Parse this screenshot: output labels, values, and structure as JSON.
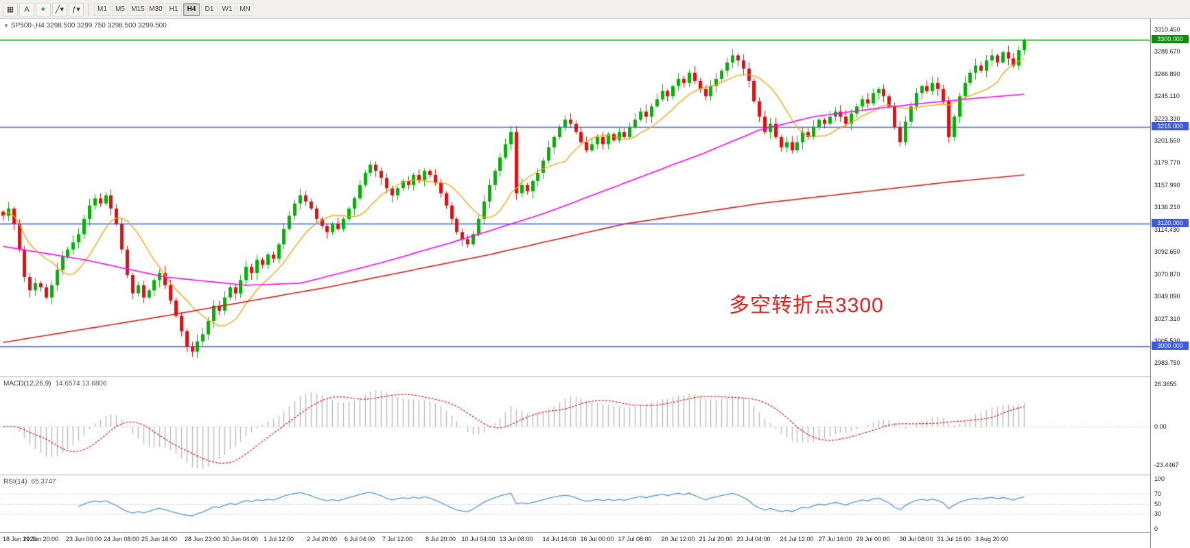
{
  "toolbar": {
    "buttons": [
      {
        "name": "chart-grid",
        "glyph": "▦"
      },
      {
        "name": "annotate-text",
        "glyph": "A"
      },
      {
        "name": "crosshair",
        "glyph": "+"
      },
      {
        "name": "line-studies",
        "glyph": "╱▾"
      },
      {
        "name": "indicators",
        "glyph": "ƒ▾"
      }
    ],
    "timeframes": [
      "M1",
      "M5",
      "M15",
      "M30",
      "H1",
      "H4",
      "D1",
      "W1",
      "MN"
    ],
    "active_timeframe": "H4"
  },
  "chart": {
    "symbol_header": "SP500-,H4  3298.500 3299.750 3298.500 3299.500",
    "annotation": {
      "text": "多空转折点3300",
      "color": "#e82020"
    }
  },
  "chart_data": {
    "type": "candlestick",
    "symbol": "SP500-",
    "timeframe": "H4",
    "quote": {
      "open": "3298.500",
      "high": "3299.750",
      "low": "3298.500",
      "close": "3299.500"
    },
    "colors": {
      "up": "#00b300",
      "down": "#dd1111",
      "ma_fast": "#ff9f00",
      "ma_mid": "#ff00ff",
      "ma_slow": "#e01818"
    },
    "y_axis": {
      "price_min": 2976,
      "price_max": 3315,
      "labels": [
        "3310.450",
        "3288.670",
        "3266.890",
        "3245.110",
        "3223.330",
        "3201.550",
        "3179.770",
        "3157.990",
        "3136.210",
        "3114.430",
        "3092.650",
        "3070.870",
        "3049.090",
        "3027.310",
        "3005.530",
        "2983.750"
      ]
    },
    "hlines": [
      {
        "price": 3300,
        "color": "#0a8f0a",
        "tag": "3300.000"
      },
      {
        "price": 3215,
        "color": "#3c5ae0",
        "tag": "3215.000"
      },
      {
        "price": 3120,
        "color": "#3c5ae0",
        "tag": "3120.000"
      },
      {
        "price": 3000,
        "color": "#3c5ae0",
        "tag": "3000.000"
      }
    ],
    "closes": [
      3128,
      3135,
      3120,
      3095,
      3068,
      3055,
      3062,
      3058,
      3048,
      3060,
      3075,
      3088,
      3095,
      3102,
      3110,
      3125,
      3138,
      3145,
      3140,
      3148,
      3135,
      3120,
      3095,
      3070,
      3052,
      3060,
      3048,
      3055,
      3065,
      3072,
      3060,
      3045,
      3030,
      3015,
      3000,
      2995,
      3005,
      3012,
      3025,
      3040,
      3035,
      3048,
      3058,
      3052,
      3065,
      3078,
      3072,
      3085,
      3080,
      3090,
      3086,
      3100,
      3115,
      3128,
      3140,
      3148,
      3142,
      3135,
      3125,
      3118,
      3112,
      3120,
      3115,
      3125,
      3135,
      3145,
      3158,
      3170,
      3178,
      3172,
      3165,
      3155,
      3148,
      3155,
      3162,
      3158,
      3168,
      3163,
      3172,
      3168,
      3160,
      3150,
      3138,
      3125,
      3112,
      3105,
      3100,
      3110,
      3125,
      3142,
      3158,
      3172,
      3185,
      3198,
      3210,
      3150,
      3158,
      3152,
      3162,
      3170,
      3182,
      3195,
      3205,
      3215,
      3222,
      3218,
      3210,
      3200,
      3192,
      3198,
      3205,
      3198,
      3208,
      3202,
      3210,
      3205,
      3215,
      3222,
      3230,
      3225,
      3235,
      3242,
      3250,
      3245,
      3255,
      3262,
      3258,
      3268,
      3260,
      3252,
      3245,
      3255,
      3262,
      3270,
      3278,
      3285,
      3280,
      3272,
      3260,
      3240,
      3225,
      3210,
      3218,
      3205,
      3195,
      3200,
      3192,
      3200,
      3210,
      3205,
      3215,
      3222,
      3218,
      3225,
      3230,
      3225,
      3218,
      3228,
      3235,
      3242,
      3238,
      3248,
      3252,
      3245,
      3235,
      3215,
      3200,
      3220,
      3235,
      3248,
      3255,
      3250,
      3258,
      3252,
      3240,
      3205,
      3225,
      3245,
      3258,
      3268,
      3275,
      3270,
      3280,
      3285,
      3278,
      3288,
      3282,
      3275,
      3290,
      3299.5
    ],
    "ma_fast_period": 10,
    "ma_mid_anchors": [
      [
        0,
        3098
      ],
      [
        15,
        3085
      ],
      [
        30,
        3068
      ],
      [
        45,
        3060
      ],
      [
        55,
        3062
      ],
      [
        70,
        3082
      ],
      [
        85,
        3105
      ],
      [
        100,
        3130
      ],
      [
        115,
        3160
      ],
      [
        130,
        3190
      ],
      [
        140,
        3212
      ],
      [
        150,
        3225
      ],
      [
        160,
        3232
      ],
      [
        170,
        3238
      ],
      [
        180,
        3243
      ],
      [
        189,
        3247
      ]
    ],
    "ma_slow_anchors": [
      [
        0,
        3004
      ],
      [
        30,
        3030
      ],
      [
        60,
        3058
      ],
      [
        90,
        3090
      ],
      [
        115,
        3120
      ],
      [
        140,
        3140
      ],
      [
        160,
        3152
      ],
      [
        175,
        3161
      ],
      [
        189,
        3168
      ]
    ],
    "macd": {
      "label": "MACD(12,26,9)",
      "display_values": "14.6574 13.6806",
      "fast": 12,
      "slow": 26,
      "signal": 9,
      "axis_labels": [
        "26.3655",
        "0.00",
        "-23.4467"
      ],
      "axis_values": [
        26.3655,
        0,
        -23.4467
      ],
      "range": [
        -27,
        28
      ],
      "histogram_color": "#b9b9b9",
      "signal_color": "#e01414"
    },
    "rsi": {
      "label": "RSI(14)",
      "display_value": "65.3747",
      "period": 14,
      "axis_labels": [
        "100",
        "70",
        "50",
        "30",
        "0"
      ],
      "axis_values": [
        100,
        70,
        50,
        30,
        0
      ],
      "levels": [
        70,
        50,
        30
      ],
      "color": "#4f96d8",
      "range": [
        0,
        100
      ]
    },
    "x_labels": [
      {
        "i": 0,
        "t": "18 Jun 2020"
      },
      {
        "i": 7,
        "t": "19 Jun 20:00"
      },
      {
        "i": 15,
        "t": "23 Jun 00:00"
      },
      {
        "i": 22,
        "t": "24 Jun 08:00"
      },
      {
        "i": 29,
        "t": "25 Jun 16:00"
      },
      {
        "i": 37,
        "t": "28 Jun 23:00"
      },
      {
        "i": 44,
        "t": "30 Jun 04:00"
      },
      {
        "i": 51,
        "t": "1 Jul 12:00"
      },
      {
        "i": 59,
        "t": "2 Jul 20:00"
      },
      {
        "i": 66,
        "t": "6 Jul 04:00"
      },
      {
        "i": 73,
        "t": "7 Jul 12:00"
      },
      {
        "i": 81,
        "t": "8 Jul 20:00"
      },
      {
        "i": 88,
        "t": "10 Jul 04:00"
      },
      {
        "i": 95,
        "t": "13 Jul 08:00"
      },
      {
        "i": 103,
        "t": "14 Jul 16:00"
      },
      {
        "i": 110,
        "t": "16 Jul 00:00"
      },
      {
        "i": 117,
        "t": "17 Jul 08:00"
      },
      {
        "i": 125,
        "t": "20 Jul 12:00"
      },
      {
        "i": 132,
        "t": "21 Jul 20:00"
      },
      {
        "i": 139,
        "t": "23 Jul 04:00"
      },
      {
        "i": 147,
        "t": "24 Jul 12:00"
      },
      {
        "i": 154,
        "t": "27 Jul 16:00"
      },
      {
        "i": 161,
        "t": "29 Jul 00:00"
      },
      {
        "i": 169,
        "t": "30 Jul 08:00"
      },
      {
        "i": 176,
        "t": "31 Jul 16:00"
      },
      {
        "i": 183,
        "t": "3 Aug 20:00"
      }
    ]
  }
}
